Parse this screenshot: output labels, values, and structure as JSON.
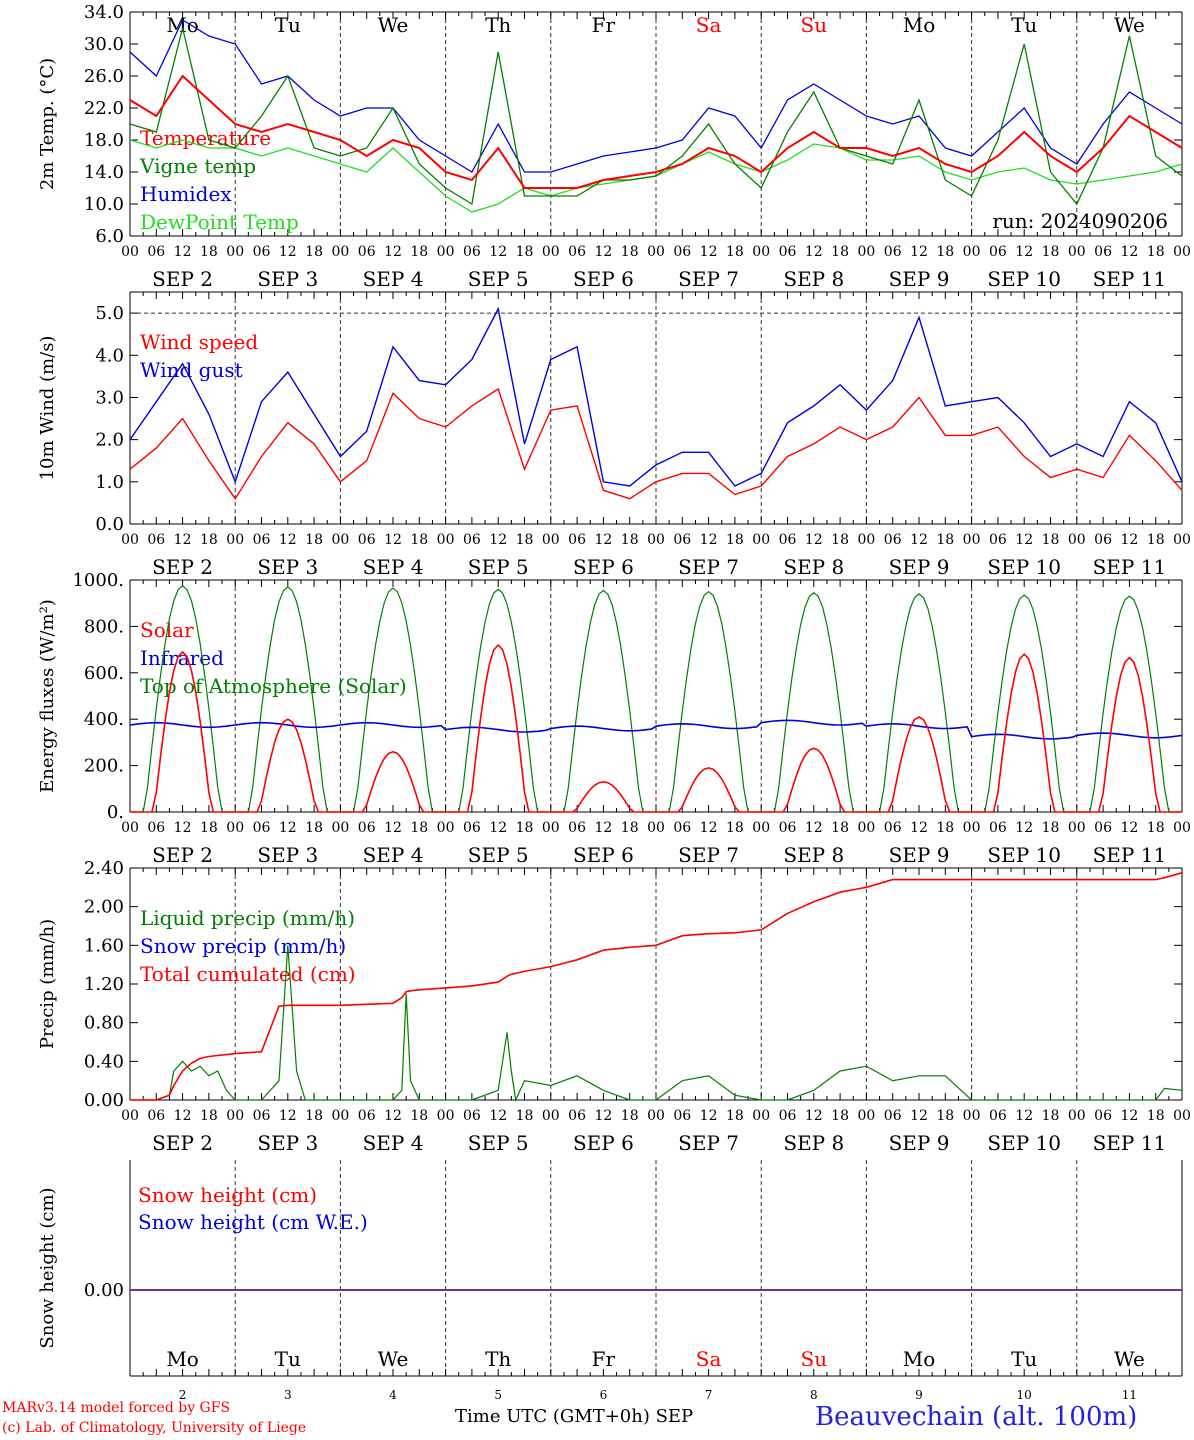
{
  "title": "Beauvechain (alt. 100m)",
  "footer": {
    "model": "MARv3.14 model forced by GFS",
    "credit": "(c) Lab. of Climatology, University of Liege",
    "xaxis_label": "Time UTC (GMT+0h) SEP"
  },
  "colors": {
    "red": "#ff0000",
    "green": "#008000",
    "lightgreen": "#22dd22",
    "blue": "#0000dd",
    "purple": "#7030a0"
  },
  "chart_data": [
    {
      "type": "line",
      "ylabel": "2m Temp. (°C)",
      "ylim": [
        6,
        34
      ],
      "yticks": [
        "6.0",
        "10.0",
        "14.0",
        "18.0",
        "22.0",
        "26.0",
        "30.0",
        "34.0"
      ],
      "annotation": "run: 2024090206",
      "weekdays": [
        "Mo",
        "Tu",
        "We",
        "Th",
        "Fr",
        "Sa",
        "Su",
        "Mo",
        "Tu",
        "We"
      ],
      "x_hours": [
        0,
        6,
        12,
        18,
        24,
        30,
        36,
        42,
        48,
        54,
        60,
        66,
        72,
        78,
        84,
        90,
        96,
        102,
        108,
        114,
        120,
        126,
        132,
        138,
        144,
        150,
        156,
        162,
        168,
        174,
        180,
        186,
        192,
        198,
        204,
        210,
        216,
        222,
        228,
        234,
        240
      ],
      "series": [
        {
          "name": "Temperature",
          "color": "#ff0000",
          "values": [
            23,
            21,
            26,
            23,
            20,
            19,
            20,
            19,
            18,
            16,
            18,
            17,
            14,
            13,
            17,
            12,
            12,
            12,
            13,
            13.5,
            14,
            15,
            17,
            16,
            14,
            17,
            19,
            17,
            17,
            16,
            17,
            15,
            14,
            16,
            19,
            16,
            14,
            17,
            21,
            19,
            17
          ]
        },
        {
          "name": "Vigne temp",
          "color": "#008000",
          "values": [
            20,
            19,
            32,
            18,
            17,
            21,
            26,
            17,
            16,
            17,
            22,
            15,
            12,
            10,
            29,
            11,
            11,
            11,
            13,
            13,
            13.5,
            16,
            20,
            15,
            12,
            19,
            24,
            17,
            16,
            15,
            23,
            13,
            11,
            18,
            30,
            14,
            10,
            17,
            31,
            16,
            13.5
          ]
        },
        {
          "name": "Humidex",
          "color": "#0000dd",
          "values": [
            29,
            26,
            33,
            31,
            30,
            25,
            26,
            23,
            21,
            22,
            22,
            18,
            16,
            14,
            20,
            14,
            14,
            15,
            16,
            16.5,
            17,
            18,
            22,
            21,
            17,
            23,
            25,
            23,
            21,
            20,
            21,
            17,
            16,
            19,
            22,
            17,
            15,
            20,
            24,
            22,
            20
          ]
        },
        {
          "name": "DewPoint Temp",
          "color": "#22dd22",
          "values": [
            18,
            17,
            18,
            17,
            17,
            16,
            17,
            16,
            15,
            14,
            17,
            14,
            11,
            9,
            10,
            12,
            11,
            12,
            12.5,
            13,
            13.5,
            15,
            16.5,
            15,
            14,
            15.5,
            17.5,
            17,
            15.5,
            15.5,
            16,
            14,
            13,
            14,
            14.5,
            13,
            12.5,
            13,
            13.5,
            14,
            15
          ]
        }
      ]
    },
    {
      "type": "line",
      "ylabel": "10m Wind (m/s)",
      "ylim": [
        0,
        5.5
      ],
      "yticks": [
        "0.0",
        "1.0",
        "2.0",
        "3.0",
        "4.0",
        "5.0"
      ],
      "refline": 5.0,
      "x_hours": [
        0,
        6,
        12,
        18,
        24,
        30,
        36,
        42,
        48,
        54,
        60,
        66,
        72,
        78,
        84,
        90,
        96,
        102,
        108,
        114,
        120,
        126,
        132,
        138,
        144,
        150,
        156,
        162,
        168,
        174,
        180,
        186,
        192,
        198,
        204,
        210,
        216,
        222,
        228,
        234,
        240
      ],
      "series": [
        {
          "name": "Wind speed",
          "color": "#ff0000",
          "values": [
            1.3,
            1.8,
            2.5,
            1.5,
            0.6,
            1.6,
            2.4,
            1.9,
            1.0,
            1.5,
            3.1,
            2.5,
            2.3,
            2.8,
            3.2,
            1.3,
            2.7,
            2.8,
            0.8,
            0.6,
            1.0,
            1.2,
            1.2,
            0.7,
            0.9,
            1.6,
            1.9,
            2.3,
            2.0,
            2.3,
            3.0,
            2.1,
            2.1,
            2.3,
            1.6,
            1.1,
            1.3,
            1.1,
            2.1,
            1.5,
            0.8
          ]
        },
        {
          "name": "Wind gust",
          "color": "#0000dd",
          "values": [
            2.0,
            2.9,
            3.8,
            2.6,
            1.0,
            2.9,
            3.6,
            2.6,
            1.6,
            2.2,
            4.2,
            3.4,
            3.3,
            3.9,
            5.1,
            1.9,
            3.9,
            4.2,
            1.0,
            0.9,
            1.4,
            1.7,
            1.7,
            0.9,
            1.2,
            2.4,
            2.8,
            3.3,
            2.7,
            3.4,
            4.9,
            2.8,
            2.9,
            3.0,
            2.4,
            1.6,
            1.9,
            1.6,
            2.9,
            2.4,
            1.0
          ]
        }
      ]
    },
    {
      "type": "line",
      "ylabel": "Energy fluxes (W/m²)",
      "ylim": [
        0,
        1000
      ],
      "yticks": [
        "0.",
        "200.",
        "400.",
        "600.",
        "800.",
        "1000."
      ],
      "days": [
        {
          "toa": 975,
          "solar": 690,
          "infrared": 375
        },
        {
          "toa": 970,
          "solar": 400,
          "infrared": 375
        },
        {
          "toa": 965,
          "solar": 260,
          "infrared": 375
        },
        {
          "toa": 960,
          "solar": 720,
          "infrared": 355
        },
        {
          "toa": 955,
          "solar": 130,
          "infrared": 360
        },
        {
          "toa": 950,
          "solar": 190,
          "infrared": 370
        },
        {
          "toa": 945,
          "solar": 275,
          "infrared": 385
        },
        {
          "toa": 940,
          "solar": 410,
          "infrared": 370
        },
        {
          "toa": 935,
          "solar": 680,
          "infrared": 325
        },
        {
          "toa": 930,
          "solar": 665,
          "infrared": 330
        }
      ],
      "series": [
        {
          "name": "Solar",
          "color": "#ff0000"
        },
        {
          "name": "Infrared",
          "color": "#0000dd"
        },
        {
          "name": "Top of Atmosphere (Solar)",
          "color": "#008000"
        }
      ]
    },
    {
      "type": "line",
      "ylabel": "Precip (mm/h)",
      "ylim": [
        0,
        2.4
      ],
      "yticks": [
        "0.00",
        "0.40",
        "0.80",
        "1.20",
        "1.60",
        "2.00",
        "2.40"
      ],
      "x_hours": [
        0,
        6,
        9,
        10,
        12,
        14,
        16,
        18,
        20,
        22,
        24,
        30,
        34,
        36,
        38,
        40,
        42,
        48,
        54,
        60,
        62,
        63,
        64,
        66,
        72,
        78,
        84,
        86,
        87,
        88,
        90,
        96,
        102,
        108,
        114,
        120,
        126,
        132,
        138,
        144,
        150,
        156,
        162,
        168,
        174,
        180,
        186,
        192,
        198,
        204,
        210,
        216,
        222,
        228,
        234,
        236,
        240
      ],
      "series": [
        {
          "name": "Liquid precip (mm/h)",
          "color": "#008000",
          "values": [
            0,
            0,
            0.05,
            0.3,
            0.4,
            0.3,
            0.35,
            0.25,
            0.3,
            0.1,
            0,
            0,
            0.2,
            1.6,
            0.3,
            0,
            0,
            0,
            0,
            0,
            0.1,
            1.1,
            0.2,
            0,
            0,
            0,
            0.1,
            0.7,
            0.3,
            0,
            0.2,
            0.15,
            0.25,
            0.1,
            0,
            0,
            0.2,
            0.25,
            0.05,
            0,
            0,
            0.1,
            0.3,
            0.35,
            0.2,
            0.25,
            0.25,
            0,
            0,
            0,
            0,
            0,
            0,
            0,
            0,
            0.12,
            0.1
          ]
        },
        {
          "name": "Snow precip (mm/h)",
          "color": "#0000dd",
          "values": []
        },
        {
          "name": "Total cumulated (cm)",
          "color": "#ff0000",
          "values": [
            0,
            0,
            0.05,
            0.15,
            0.3,
            0.38,
            0.43,
            0.45,
            0.46,
            0.47,
            0.48,
            0.5,
            0.97,
            0.98,
            0.98,
            0.98,
            0.98,
            0.98,
            0.99,
            1.0,
            1.06,
            1.12,
            1.13,
            1.14,
            1.16,
            1.18,
            1.22,
            1.28,
            1.3,
            1.31,
            1.33,
            1.38,
            1.45,
            1.55,
            1.58,
            1.6,
            1.7,
            1.72,
            1.73,
            1.76,
            1.93,
            2.05,
            2.15,
            2.2,
            2.28,
            2.28,
            2.28,
            2.28,
            2.28,
            2.28,
            2.28,
            2.28,
            2.28,
            2.28,
            2.28,
            2.3,
            2.35
          ]
        }
      ]
    },
    {
      "type": "line",
      "ylabel": "Snow height (cm)",
      "yticks": [
        "0.00"
      ],
      "weekdays": [
        "Mo",
        "Tu",
        "We",
        "Th",
        "Fr",
        "Sa",
        "Su",
        "Mo",
        "Tu",
        "We"
      ],
      "day_numbers": [
        "2",
        "3",
        "4",
        "5",
        "6",
        "7",
        "8",
        "9",
        "10",
        "11"
      ],
      "series": [
        {
          "name": "Snow height (cm)",
          "color": "#ff0000",
          "values": [
            0,
            0
          ]
        },
        {
          "name": "Snow height (cm W.E.)",
          "color": "#0000dd",
          "values": [
            0,
            0
          ]
        }
      ]
    }
  ],
  "date_labels": [
    "SEP  2",
    "SEP  3",
    "SEP  4",
    "SEP  5",
    "SEP  6",
    "SEP  7",
    "SEP  8",
    "SEP  9",
    "SEP 10",
    "SEP 11"
  ],
  "hour_labels": [
    "00",
    "06",
    "12",
    "18"
  ],
  "hour_label_end": "00"
}
